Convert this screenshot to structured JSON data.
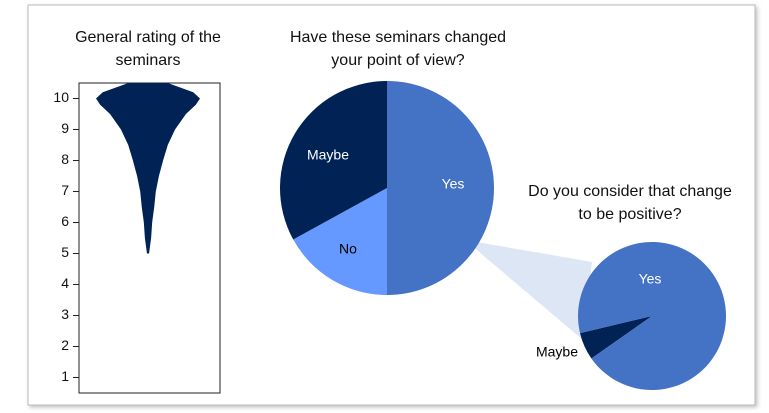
{
  "chart_data": [
    {
      "type": "violin",
      "title": "General rating of the seminars",
      "y": [
        5,
        5.5,
        6,
        6.5,
        7,
        7.5,
        8,
        8.5,
        9,
        9.5,
        9.8,
        10,
        10.2,
        10.5
      ],
      "values": [
        0.02,
        0.06,
        0.08,
        0.12,
        0.15,
        0.21,
        0.29,
        0.38,
        0.52,
        0.73,
        0.92,
        1.0,
        0.87,
        0.38
      ],
      "color": "#002255",
      "ylim": [
        0.5,
        10.5
      ],
      "yticks": [
        1,
        2,
        3,
        4,
        5,
        6,
        7,
        8,
        9,
        10
      ]
    },
    {
      "type": "pie",
      "title": "Have these seminars changed your point of view?",
      "categories": [
        "Yes",
        "No",
        "Maybe"
      ],
      "values": [
        50,
        17,
        33
      ],
      "colors": [
        "#4472c4",
        "#6699ff",
        "#002255"
      ]
    },
    {
      "type": "pie",
      "title": "Do you consider that change to be positive?",
      "categories": [
        "Maybe",
        "Yes"
      ],
      "values": [
        6,
        94
      ],
      "colors": [
        "#002255",
        "#4472c4"
      ]
    }
  ]
}
